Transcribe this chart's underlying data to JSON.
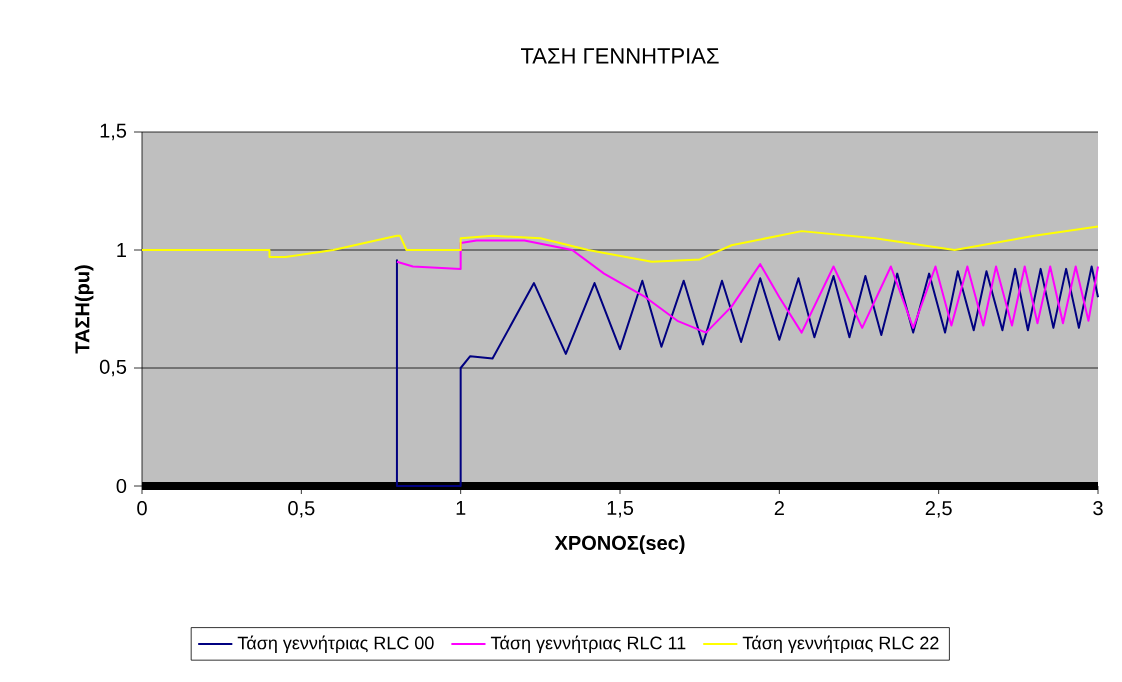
{
  "chart_data": {
    "type": "line",
    "title": "ΤΑΣΗ ΓΕΝΝΗΤΡΙΑΣ",
    "xlabel": "ΧΡΟΝΟΣ(sec)",
    "ylabel": "ΤΑΣΗ(pu)",
    "xlim": [
      0,
      3
    ],
    "ylim": [
      0,
      1.5
    ],
    "xticks": [
      0,
      {
        "value": 0.5,
        "label": "0,5"
      },
      1,
      {
        "value": 1.5,
        "label": "1,5"
      },
      2,
      {
        "value": 2.5,
        "label": "2,5"
      },
      3
    ],
    "yticks": [
      0,
      {
        "value": 0.5,
        "label": "0,5"
      },
      1,
      {
        "value": 1.5,
        "label": "1,5"
      }
    ],
    "grid": "y",
    "legend": "bottom",
    "marker": "none",
    "line_style": "solid",
    "series": [
      {
        "name": "Τάση γεννήτριας RLC 00",
        "color": "#000080",
        "x": [
          0.8,
          0.8,
          1.0,
          1.0,
          1.03,
          1.1,
          1.23,
          1.33,
          1.42,
          1.5,
          1.57,
          1.63,
          1.7,
          1.76,
          1.82,
          1.88,
          1.94,
          2.0,
          2.06,
          2.11,
          2.17,
          2.22,
          2.27,
          2.32,
          2.37,
          2.42,
          2.47,
          2.52,
          2.56,
          2.61,
          2.65,
          2.7,
          2.74,
          2.78,
          2.82,
          2.86,
          2.9,
          2.94,
          2.98,
          3.0
        ],
        "values": [
          0.96,
          0,
          0,
          0.5,
          0.55,
          0.54,
          0.86,
          0.56,
          0.86,
          0.58,
          0.87,
          0.59,
          0.87,
          0.6,
          0.87,
          0.61,
          0.88,
          0.62,
          0.88,
          0.63,
          0.89,
          0.63,
          0.89,
          0.64,
          0.9,
          0.65,
          0.9,
          0.65,
          0.91,
          0.66,
          0.91,
          0.66,
          0.92,
          0.66,
          0.92,
          0.67,
          0.92,
          0.67,
          0.93,
          0.8
        ]
      },
      {
        "name": "Τάση γεννήτριας RLC 11",
        "color": "#ff00ff",
        "x": [
          0.8,
          0.85,
          1.0,
          1.0,
          1.05,
          1.2,
          1.35,
          1.45,
          1.58,
          1.68,
          1.77,
          1.85,
          1.94,
          2.0,
          2.07,
          2.17,
          2.26,
          2.35,
          2.42,
          2.49,
          2.54,
          2.59,
          2.64,
          2.68,
          2.73,
          2.77,
          2.81,
          2.85,
          2.89,
          2.93,
          2.97,
          3.0
        ],
        "values": [
          0.95,
          0.93,
          0.92,
          1.03,
          1.04,
          1.04,
          1.0,
          0.9,
          0.8,
          0.7,
          0.65,
          0.76,
          0.94,
          0.8,
          0.65,
          0.93,
          0.67,
          0.93,
          0.67,
          0.93,
          0.68,
          0.93,
          0.68,
          0.93,
          0.68,
          0.93,
          0.69,
          0.93,
          0.69,
          0.93,
          0.7,
          0.93
        ]
      },
      {
        "name": "Τάση γεννήτριας RLC 22",
        "color": "#ffff00",
        "x": [
          0,
          0.4,
          0.4,
          0.45,
          0.6,
          0.8,
          0.81,
          0.83,
          1.0,
          1.0,
          1.1,
          1.25,
          1.4,
          1.6,
          1.75,
          1.85,
          2.07,
          2.3,
          2.55,
          2.8,
          3.0
        ],
        "values": [
          1.0,
          1.0,
          0.97,
          0.97,
          1.0,
          1.06,
          1.06,
          1.0,
          1.0,
          1.05,
          1.06,
          1.05,
          1.0,
          0.95,
          0.96,
          1.02,
          1.08,
          1.05,
          1.0,
          1.06,
          1.1
        ]
      }
    ]
  }
}
